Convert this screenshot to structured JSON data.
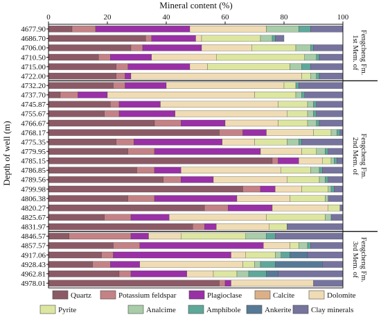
{
  "chart_data": {
    "type": "bar",
    "orientation": "horizontal",
    "stacked": true,
    "xlabel": "Mineral content (%)",
    "ylabel": "Depth of well (m)",
    "xlim": [
      0,
      100
    ],
    "x_ticks": [
      0,
      20,
      40,
      60,
      80,
      100
    ],
    "x_axis_position": "top",
    "legend_position": "bottom",
    "categories": [
      "4677.90",
      "4686.70",
      "4706.00",
      "4710.50",
      "4715.00",
      "4722.00",
      "4732.20",
      "4737.70",
      "4745.87",
      "4755.67",
      "4766.67",
      "4768.17",
      "4775.35",
      "4779.95",
      "4785.15",
      "4786.85",
      "4789.56",
      "4799.98",
      "4806.38",
      "4820.27",
      "4825.67",
      "4831.97",
      "4846.57",
      "4857.57",
      "4917.06",
      "4928.43",
      "4962.81",
      "4978.01"
    ],
    "series": [
      {
        "name": "Quartz",
        "color": "#8c5a66",
        "values": [
          8,
          33,
          28,
          17,
          23,
          23,
          22,
          4,
          21,
          19,
          36,
          58,
          23,
          27,
          76,
          30,
          39,
          66,
          27,
          53,
          19,
          49,
          7,
          22,
          18,
          15,
          24,
          58
        ]
      },
      {
        "name": "Potassium feldspar",
        "color": "#c48286",
        "values": [
          8,
          2,
          4,
          4,
          4,
          3,
          4,
          6,
          3,
          5,
          9,
          8,
          6,
          9,
          2,
          6,
          6,
          6,
          9,
          8,
          9,
          4,
          21,
          9,
          4,
          6,
          4,
          2
        ]
      },
      {
        "name": "Plagioclase",
        "color": "#9a30a6",
        "values": [
          32,
          15,
          20,
          14,
          21,
          2,
          14,
          10,
          14,
          19,
          15,
          8,
          30,
          36,
          7,
          9,
          11,
          5,
          28,
          15,
          13,
          4,
          6,
          42,
          40,
          10,
          19,
          2
        ]
      },
      {
        "name": "Calcite",
        "color": "#dcb086",
        "values": [
          0,
          0,
          0,
          0,
          0,
          0,
          0,
          0,
          0,
          0,
          0,
          0,
          0,
          0,
          0,
          0,
          0,
          0,
          0,
          0,
          0,
          0,
          0,
          0,
          0,
          0,
          0,
          0
        ]
      },
      {
        "name": "Dolomite",
        "color": "#f0dcb4",
        "values": [
          26,
          2,
          17,
          22,
          6,
          58,
          40,
          50,
          40,
          38,
          18,
          16,
          11,
          14,
          8,
          34,
          25,
          9,
          18,
          19,
          33,
          18,
          11,
          9,
          5,
          35,
          9,
          28
        ]
      },
      {
        "name": "Pyrite",
        "color": "#dde6a0",
        "values": [
          0,
          20,
          15,
          30,
          28,
          3,
          4,
          14,
          10,
          7,
          10,
          6,
          11,
          5,
          3,
          10,
          11,
          9,
          12,
          4,
          20,
          6,
          22,
          3,
          10,
          4,
          8,
          0
        ]
      },
      {
        "name": "Analcime",
        "color": "#a8cda8",
        "values": [
          11,
          4,
          5,
          4,
          4,
          2,
          0,
          2,
          2,
          2,
          3,
          2,
          4,
          3,
          1,
          3,
          2,
          1,
          1,
          0,
          2,
          0,
          7,
          3,
          2,
          2,
          4,
          0
        ]
      },
      {
        "name": "Amphibole",
        "color": "#5ea89a",
        "values": [
          4,
          1,
          1,
          1,
          3,
          1,
          1,
          1,
          1,
          1,
          1,
          1,
          1,
          1,
          1,
          1,
          1,
          1,
          0,
          0,
          0,
          0,
          3,
          1,
          3,
          5,
          6,
          0
        ]
      },
      {
        "name": "Ankerite",
        "color": "#567a96",
        "values": [
          0,
          0,
          0,
          0,
          0,
          0,
          0,
          0,
          0,
          0,
          0,
          0,
          0,
          0,
          0,
          0,
          0,
          0,
          0,
          0,
          0,
          0,
          0,
          0,
          6,
          16,
          4,
          0
        ]
      },
      {
        "name": "Clay minerals",
        "color": "#76739e",
        "values": [
          11,
          3,
          10,
          8,
          11,
          8,
          15,
          13,
          9,
          9,
          8,
          1,
          14,
          5,
          2,
          7,
          5,
          3,
          5,
          1,
          4,
          19,
          23,
          11,
          12,
          7,
          22,
          10
        ]
      }
    ],
    "members": [
      {
        "label_line1": "1st Mem. of",
        "label_line2": "Fengcheng Fm.",
        "start": 0,
        "end": 5
      },
      {
        "label_line1": "2nd Mem. of",
        "label_line2": "Fengcheng Fm.",
        "start": 6,
        "end": 21
      },
      {
        "label_line1": "3rd Mem. of",
        "label_line2": "Fengcheng Fm.",
        "start": 22,
        "end": 27
      }
    ]
  }
}
